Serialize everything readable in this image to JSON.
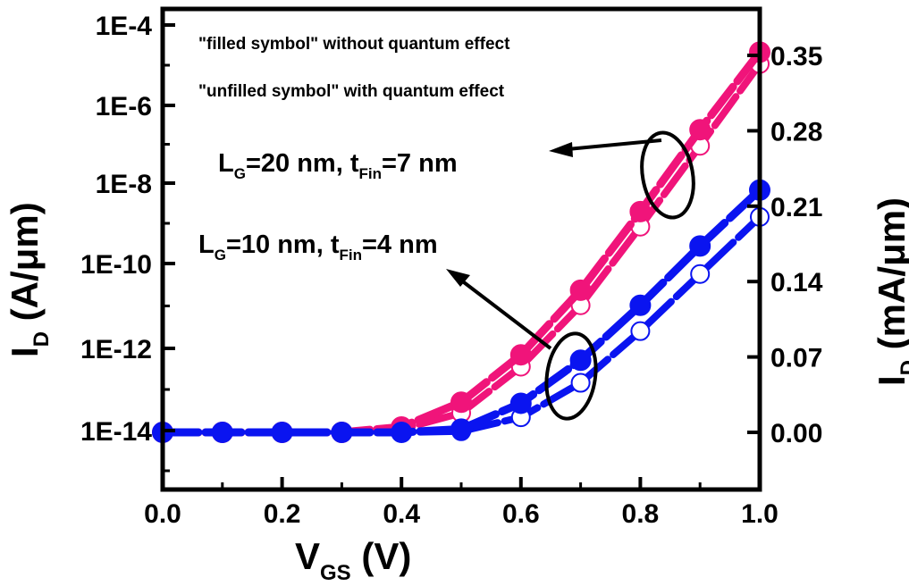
{
  "chart_data": {
    "type": "line",
    "xlabel": "V",
    "xlabel_sub": "GS",
    "xlabel_unit": " (V)",
    "ylabel_left": "I",
    "ylabel_left_sub": "D",
    "ylabel_left_unit": " (A/μm)",
    "ylabel_right": "I",
    "ylabel_right_sub": "D",
    "ylabel_right_unit": " (mA/μm)",
    "xlim": [
      0.0,
      1.0
    ],
    "ylim_right": [
      -0.04,
      0.38
    ],
    "x_ticks": [
      "0.0",
      "0.2",
      "0.4",
      "0.6",
      "0.8",
      "1.0"
    ],
    "y_left_ticks": [
      "1E-4",
      "1E-6",
      "1E-8",
      "1E-10",
      "1E-12",
      "1E-14"
    ],
    "y_right_ticks": [
      "0.35",
      "0.28",
      "0.21",
      "0.14",
      "0.07",
      "0.00"
    ],
    "annotations": {
      "note1": "\"filled symbol\" without quantum effect",
      "note2": "\"unfilled symbol\" with quantum effect",
      "label20": {
        "a": "L",
        "a_sub": "G",
        "b": "=20 nm, t",
        "b_sub": "Fin",
        "c": "=7 nm"
      },
      "label10": {
        "a": "L",
        "a_sub": "G",
        "b": "=10 nm, t",
        "b_sub": "Fin",
        "c": "=4 nm"
      }
    },
    "x": [
      0.0,
      0.1,
      0.2,
      0.3,
      0.4,
      0.5,
      0.6,
      0.7,
      0.8,
      0.9,
      1.0
    ],
    "series": [
      {
        "name": "LG=20 nm, tFin=7 nm, without quantum effect",
        "color": "#f0147a",
        "filled": true,
        "values": [
          0,
          0,
          0,
          0,
          0.005,
          0.028,
          0.072,
          0.132,
          0.205,
          0.281,
          0.353
        ]
      },
      {
        "name": "LG=20 nm, tFin=7 nm, with quantum effect",
        "color": "#f0147a",
        "filled": false,
        "values": [
          0,
          0,
          0,
          0,
          0.003,
          0.018,
          0.061,
          0.118,
          0.191,
          0.266,
          0.342
        ]
      },
      {
        "name": "LG=10 nm, tFin=4 nm, without quantum effect",
        "color": "#0a14f0",
        "filled": true,
        "values": [
          0,
          0,
          0,
          0,
          0,
          0.003,
          0.027,
          0.067,
          0.118,
          0.173,
          0.225
        ]
      },
      {
        "name": "LG=10 nm, tFin=4 nm, with quantum effect",
        "color": "#0a14f0",
        "filled": false,
        "values": [
          0,
          0,
          0,
          0,
          0,
          0.001,
          0.014,
          0.046,
          0.094,
          0.147,
          0.2
        ]
      }
    ]
  }
}
